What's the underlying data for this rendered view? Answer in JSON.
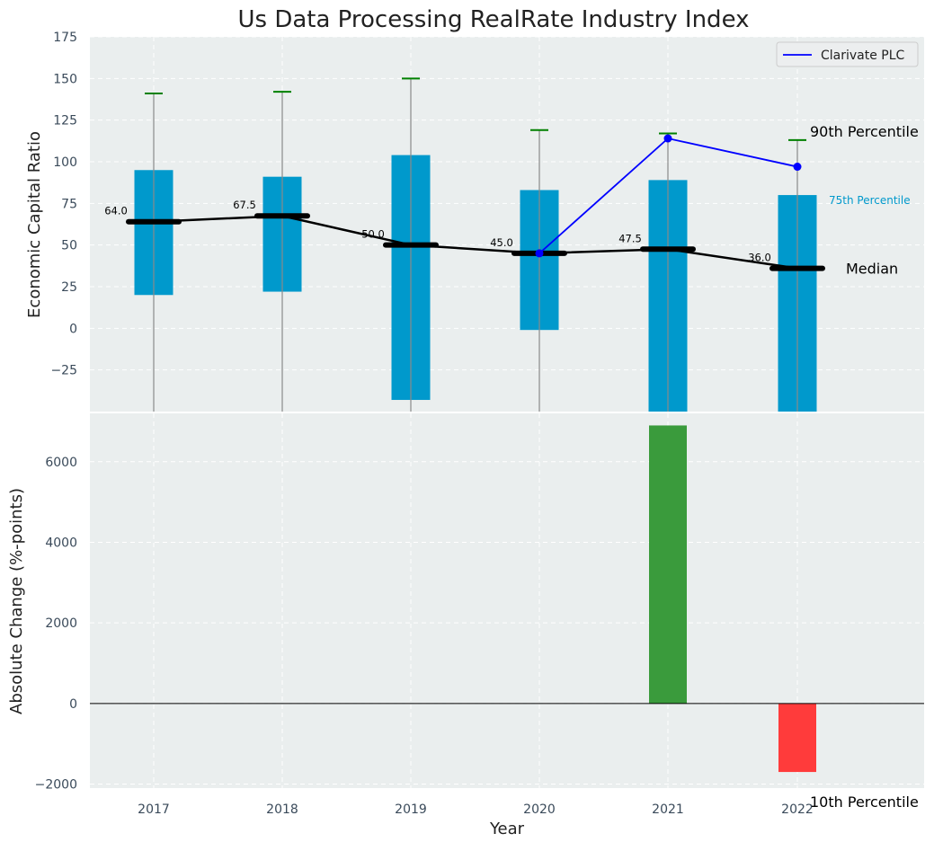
{
  "title": "Us Data Processing RealRate Industry Index",
  "colors": {
    "plot_bg": "#eaeeee",
    "box": "#0099cc",
    "median_line": "#000000",
    "company_line": "#0000ff",
    "whisker_cap": "#008000",
    "whisker": "#8a8a8a",
    "positive_bar": "#3a9b3c",
    "negative_bar": "#ff3b3b",
    "axis_text": "#3a4a5a",
    "grid": "#ffffff"
  },
  "chart_data": [
    {
      "type": "box",
      "ylabel": "Economic Capital Ratio",
      "ylim": [
        -50,
        175
      ],
      "yticks": [
        -25,
        0,
        25,
        50,
        75,
        100,
        125,
        150,
        175
      ],
      "ytick_labels": [
        "−25",
        "0",
        "25",
        "50",
        "75",
        "100",
        "125",
        "150",
        "175"
      ],
      "categories": [
        "2017",
        "2018",
        "2019",
        "2020",
        "2021",
        "2022"
      ],
      "percentile_10": [
        -50,
        -50,
        -50,
        -50,
        -50,
        -50
      ],
      "percentile_25": [
        20,
        22,
        -43,
        -1,
        -50,
        -50
      ],
      "median": [
        64.0,
        67.5,
        50.0,
        45.0,
        47.5,
        36.0
      ],
      "median_labels": [
        "64.0",
        "67.5",
        "50.0",
        "45.0",
        "47.5",
        "36.0"
      ],
      "percentile_75": [
        95,
        91,
        104,
        83,
        89,
        80
      ],
      "percentile_90": [
        141,
        142,
        150,
        119,
        117,
        113
      ],
      "series": [
        {
          "name": "Clarivate PLC",
          "x": [
            "2020",
            "2021",
            "2022"
          ],
          "values": [
            45,
            114,
            97
          ]
        }
      ],
      "legend": {
        "position": "top-right",
        "entries": [
          "Clarivate PLC"
        ]
      },
      "annotations": {
        "p90": "90th Percentile",
        "p75": "75th Percentile",
        "median": "Median",
        "p10": "10th Percentile"
      },
      "grid": true
    },
    {
      "type": "bar",
      "ylabel": "Absolute Change (%-points)",
      "xlabel": "Year",
      "ylim": [
        -2100,
        7200
      ],
      "yticks": [
        -2000,
        0,
        2000,
        4000,
        6000
      ],
      "ytick_labels": [
        "−2000",
        "0",
        "2000",
        "4000",
        "6000"
      ],
      "categories": [
        "2017",
        "2018",
        "2019",
        "2020",
        "2021",
        "2022"
      ],
      "values": [
        0,
        0,
        0,
        0,
        6900,
        -1700
      ],
      "grid": true
    }
  ]
}
